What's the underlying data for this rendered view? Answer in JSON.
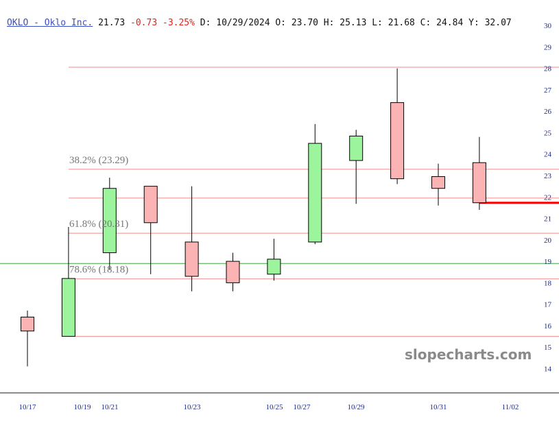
{
  "header": {
    "symbol_link": "OKLO - Oklo Inc.",
    "price": "21.73",
    "change": "-0.73 -3.25%",
    "rest": "D: 10/29/2024 O: 23.70 H: 25.13 L: 21.68 C: 24.84 Y: 32.07"
  },
  "watermark": "slopecharts.com",
  "colors": {
    "up": "#9cf59c",
    "down": "#fbb3b3",
    "fib_line": "#f08a8a",
    "price_line": "#ff0000",
    "hline_green": "#3ca83c",
    "axis_text": "#1a2a8a"
  },
  "chart_data": {
    "type": "candlestick",
    "ylim": [
      13.6,
      30.8
    ],
    "y_ticks": [
      14,
      15,
      16,
      17,
      18,
      19,
      20,
      21,
      22,
      23,
      24,
      25,
      26,
      27,
      28,
      29,
      30
    ],
    "y_tick_labels": [
      "14",
      "15",
      "16",
      "17",
      "18",
      "19",
      "20",
      "21",
      "22",
      "23",
      "24",
      "25",
      "26",
      "27",
      "28",
      "29",
      "30"
    ],
    "x_labels": [
      "10/17",
      "10/19",
      "10/21",
      "10/23",
      "10/25",
      "10/27",
      "10/29",
      "10/31",
      "11/02"
    ],
    "candles": [
      {
        "open": 16.4,
        "high": 16.7,
        "low": 14.1,
        "close": 15.75
      },
      {
        "open": 15.5,
        "high": 20.6,
        "low": 15.5,
        "close": 18.2
      },
      {
        "open": 19.4,
        "high": 22.9,
        "low": 18.6,
        "close": 22.4
      },
      {
        "open": 22.5,
        "high": 22.5,
        "low": 18.4,
        "close": 20.8
      },
      {
        "open": 19.9,
        "high": 22.5,
        "low": 17.6,
        "close": 18.3
      },
      {
        "open": 19.0,
        "high": 19.4,
        "low": 17.6,
        "close": 18.0
      },
      {
        "open": 18.4,
        "high": 20.05,
        "low": 18.1,
        "close": 19.1
      },
      {
        "open": 19.9,
        "high": 25.4,
        "low": 19.8,
        "close": 24.5
      },
      {
        "open": 23.7,
        "high": 25.13,
        "low": 21.68,
        "close": 24.84
      },
      {
        "open": 26.4,
        "high": 28.0,
        "low": 22.6,
        "close": 22.85
      },
      {
        "open": 22.95,
        "high": 23.55,
        "low": 21.6,
        "close": 22.4
      },
      {
        "open": 23.6,
        "high": 24.8,
        "low": 21.4,
        "close": 21.73
      }
    ],
    "fib_levels": [
      {
        "label": "38.2% (23.29)",
        "value": 23.29
      },
      {
        "label": "61.8% (20.31)",
        "value": 20.31
      },
      {
        "label": "78.6% (18.18)",
        "value": 18.18
      }
    ],
    "horizontal_lines": [
      28.05,
      23.29,
      21.95,
      20.31,
      18.18,
      15.5
    ],
    "support_line": 18.9,
    "last_price": 21.73
  }
}
